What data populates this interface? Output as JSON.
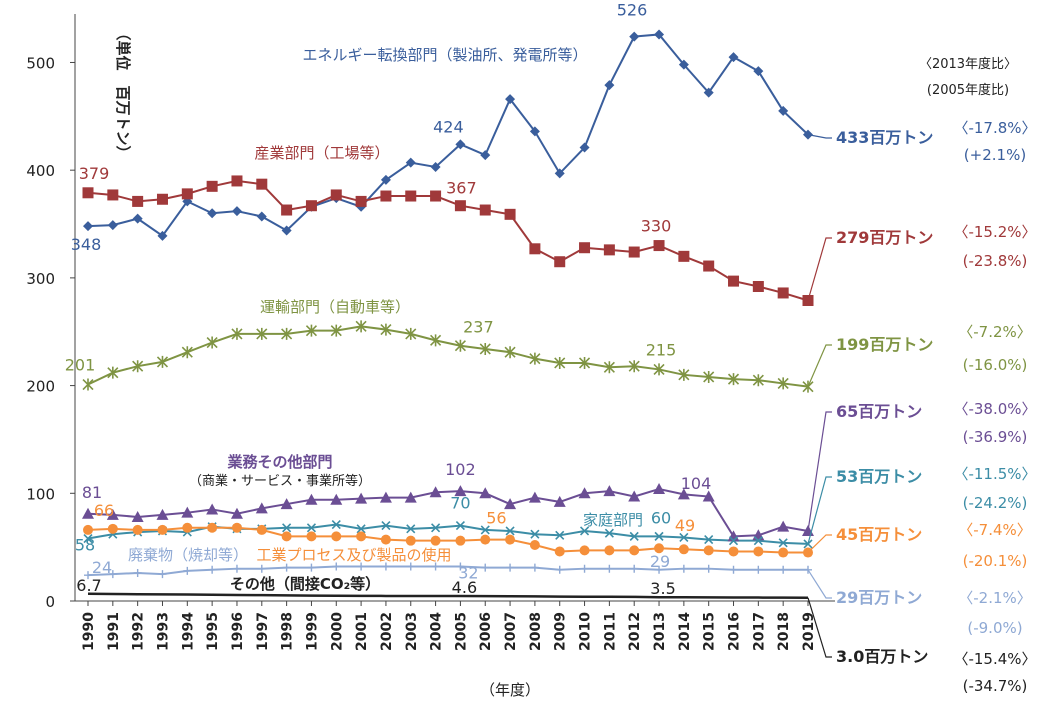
{
  "chart_data": {
    "type": "line",
    "unit_label": "（単位　百万トン）",
    "xlabel": "（年度）",
    "ylim": [
      0,
      545
    ],
    "y_ticks": [
      "0",
      "100",
      "200",
      "300",
      "400",
      "500"
    ],
    "x": [
      "1990",
      "1991",
      "1992",
      "1993",
      "1994",
      "1995",
      "1996",
      "1997",
      "1998",
      "1999",
      "2000",
      "2001",
      "2002",
      "2003",
      "2004",
      "2005",
      "2006",
      "2007",
      "2008",
      "2009",
      "2010",
      "2011",
      "2012",
      "2013",
      "2014",
      "2015",
      "2016",
      "2017",
      "2018",
      "2019"
    ],
    "legend_header": [
      "〈2013年度比〉",
      "(2005年度比)"
    ],
    "series": [
      {
        "name": "エネルギー転換部門（製油所、発電所等）",
        "color": "#3A5E9C",
        "marker": "diamond",
        "values": [
          348,
          349,
          355,
          339,
          371,
          360,
          362,
          357,
          344,
          366,
          374,
          366,
          391,
          407,
          403,
          424,
          414,
          466,
          436,
          397,
          421,
          479,
          524,
          526,
          498,
          472,
          505,
          492,
          455,
          433
        ],
        "end_label": "433百万トン",
        "ratio_2013": "〈-17.8%〉",
        "ratio_2005": "(+2.1%)"
      },
      {
        "name": "産業部門（工場等）",
        "color": "#A0393A",
        "marker": "square",
        "values": [
          379,
          377,
          371,
          373,
          378,
          385,
          390,
          387,
          363,
          367,
          377,
          371,
          376,
          376,
          376,
          367,
          363,
          359,
          327,
          315,
          328,
          326,
          324,
          330,
          320,
          311,
          297,
          292,
          286,
          279
        ],
        "end_label": "279百万トン",
        "ratio_2013": "〈-15.2%〉",
        "ratio_2005": "(-23.8%)"
      },
      {
        "name": "運輸部門（自動車等）",
        "color": "#7F9443",
        "marker": "star",
        "values": [
          201,
          212,
          218,
          222,
          231,
          240,
          248,
          248,
          248,
          251,
          251,
          255,
          252,
          248,
          242,
          237,
          234,
          231,
          225,
          221,
          221,
          217,
          218,
          215,
          210,
          208,
          206,
          205,
          202,
          199
        ],
        "end_label": "199百万トン",
        "ratio_2013": "〈-7.2%〉",
        "ratio_2005": "(-16.0%)"
      },
      {
        "name": "業務その他部門",
        "subname": "（商業・サービス・事業所等）",
        "color": "#6B4E94",
        "marker": "triangle",
        "values": [
          81,
          80,
          78,
          80,
          82,
          85,
          81,
          86,
          90,
          94,
          94,
          95,
          96,
          96,
          101,
          102,
          100,
          90,
          96,
          92,
          100,
          102,
          97,
          104,
          99,
          97,
          60,
          61,
          69,
          65
        ],
        "end_label": "65百万トン",
        "ratio_2013": "〈-38.0%〉",
        "ratio_2005": "(-36.9%)"
      },
      {
        "name": "家庭部門",
        "color": "#3C8DA6",
        "marker": "x",
        "values": [
          58,
          62,
          64,
          65,
          64,
          69,
          67,
          67,
          68,
          68,
          71,
          67,
          70,
          67,
          68,
          70,
          66,
          65,
          62,
          61,
          65,
          63,
          60,
          60,
          59,
          57,
          56,
          56,
          54,
          53
        ],
        "end_label": "53百万トン",
        "ratio_2013": "〈-11.5%〉",
        "ratio_2005": "(-24.2%)"
      },
      {
        "name": "工業プロセス及び製品の使用",
        "color": "#F58F3A",
        "marker": "circle",
        "values": [
          66,
          67,
          66,
          66,
          68,
          68,
          68,
          66,
          60,
          60,
          60,
          60,
          57,
          56,
          56,
          56,
          57,
          57,
          52,
          46,
          47,
          47,
          47,
          49,
          48,
          47,
          46,
          46,
          45,
          45
        ],
        "end_label": "45百万トン",
        "ratio_2013": "〈-7.4%〉",
        "ratio_2005": "(-20.1%)"
      },
      {
        "name": "廃棄物（焼却等）",
        "color": "#8FA9D4",
        "marker": "plus",
        "values": [
          24,
          25,
          26,
          25,
          28,
          29,
          30,
          30,
          31,
          31,
          32,
          32,
          32,
          32,
          32,
          32,
          31,
          31,
          31,
          29,
          30,
          30,
          30,
          29,
          30,
          30,
          29,
          29,
          29,
          29
        ],
        "end_label": "29百万トン",
        "ratio_2013": "〈-2.1%〉",
        "ratio_2005": "(-9.0%)"
      },
      {
        "name": "その他（間接CO₂等）",
        "color": "#222222",
        "marker": "none",
        "values": [
          6.7,
          6.5,
          6.3,
          6.1,
          6.0,
          5.8,
          5.6,
          5.4,
          5.2,
          5.0,
          4.9,
          4.8,
          4.7,
          4.7,
          4.6,
          4.6,
          4.5,
          4.4,
          4.3,
          4.1,
          4.0,
          3.9,
          3.8,
          3.5,
          3.5,
          3.4,
          3.3,
          3.2,
          3.1,
          3.0
        ],
        "end_label": "3.0百万トン",
        "ratio_2013": "〈-15.4%〉",
        "ratio_2005": "(-34.7%)"
      }
    ],
    "annotations": [
      {
        "series": 0,
        "x": "1990",
        "text": "348"
      },
      {
        "series": 0,
        "x": "2005",
        "text": "424"
      },
      {
        "series": 0,
        "x": "2013",
        "text": "526"
      },
      {
        "series": 1,
        "x": "1990",
        "text": "379"
      },
      {
        "series": 1,
        "x": "2005",
        "text": "367"
      },
      {
        "series": 1,
        "x": "2013",
        "text": "330"
      },
      {
        "series": 2,
        "x": "1990",
        "text": "201"
      },
      {
        "series": 2,
        "x": "2005",
        "text": "237"
      },
      {
        "series": 2,
        "x": "2013",
        "text": "215"
      },
      {
        "series": 3,
        "x": "1990",
        "text": "81"
      },
      {
        "series": 3,
        "x": "2005",
        "text": "102"
      },
      {
        "series": 3,
        "x": "2013",
        "text": "104"
      },
      {
        "series": 4,
        "x": "2005",
        "text": "70"
      },
      {
        "series": 4,
        "x": "2013",
        "text": "60"
      },
      {
        "series": 4,
        "x": "1990",
        "text": "58"
      },
      {
        "series": 5,
        "x": "1990",
        "text": "66"
      },
      {
        "series": 5,
        "x": "2005",
        "text": "56"
      },
      {
        "series": 5,
        "x": "2013",
        "text": "49"
      },
      {
        "series": 6,
        "x": "1990",
        "text": "24"
      },
      {
        "series": 6,
        "x": "2005",
        "text": "32"
      },
      {
        "series": 6,
        "x": "2013",
        "text": "29"
      },
      {
        "series": 7,
        "x": "1990",
        "text": "6.7"
      },
      {
        "series": 7,
        "x": "2005",
        "text": "4.6"
      },
      {
        "series": 7,
        "x": "2013",
        "text": "3.5"
      }
    ]
  }
}
